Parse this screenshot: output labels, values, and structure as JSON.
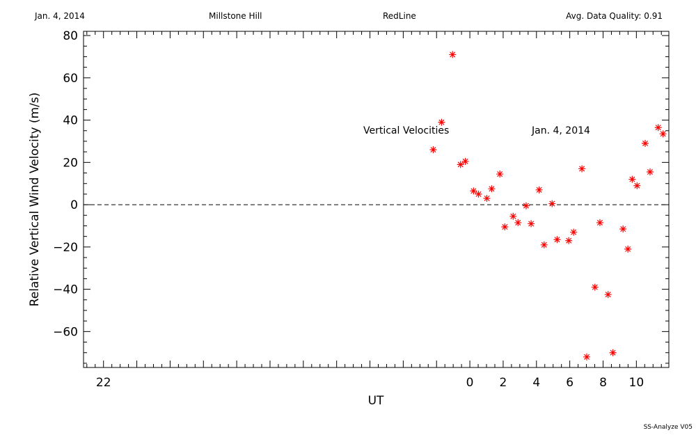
{
  "header": {
    "date": "Jan. 4, 2014",
    "site": "Millstone Hill",
    "line": "RedLine",
    "quality": "Avg. Data Quality: 0.91"
  },
  "footer": "SS-Analyze V05",
  "chart_data": {
    "type": "scatter",
    "xlabel": "UT",
    "ylabel": "Relative Vertical Wind Velocity (m/s)",
    "xlim": [
      -23.2,
      11.95
    ],
    "ylim": [
      -77,
      82
    ],
    "x_ticks": [
      -22,
      0,
      2,
      4,
      6,
      8,
      10
    ],
    "x_tick_labels": [
      "22",
      "0",
      "2",
      "4",
      "6",
      "8",
      "10"
    ],
    "y_ticks": [
      -60,
      -40,
      -20,
      0,
      20,
      40,
      60,
      80
    ],
    "y_tick_labels": [
      "−60",
      "−40",
      "−20",
      "0",
      "20",
      "40",
      "60",
      "80"
    ],
    "annotations": [
      "Vertical Velocities",
      "Jan. 4, 2014"
    ],
    "reference_line": {
      "y": 0,
      "style": "dashed"
    },
    "marker": {
      "symbol": "asterisk",
      "color": "#ff0000"
    },
    "series": [
      {
        "points": [
          {
            "x": -2.2,
            "y": 26
          },
          {
            "x": -1.7,
            "y": 39
          },
          {
            "x": -1.04,
            "y": 71
          },
          {
            "x": -0.56,
            "y": 19
          },
          {
            "x": -0.27,
            "y": 20.5
          },
          {
            "x": 0.22,
            "y": 6.5
          },
          {
            "x": 0.52,
            "y": 5
          },
          {
            "x": 1.02,
            "y": 3
          },
          {
            "x": 1.31,
            "y": 7.5
          },
          {
            "x": 1.8,
            "y": 14.5
          },
          {
            "x": 2.1,
            "y": -10.5
          },
          {
            "x": 2.6,
            "y": -5.5
          },
          {
            "x": 2.89,
            "y": -8.5
          },
          {
            "x": 3.38,
            "y": -0.5
          },
          {
            "x": 3.68,
            "y": -9
          },
          {
            "x": 4.16,
            "y": 7
          },
          {
            "x": 4.46,
            "y": -19
          },
          {
            "x": 4.94,
            "y": 0.5
          },
          {
            "x": 5.24,
            "y": -16.5
          },
          {
            "x": 5.94,
            "y": -17
          },
          {
            "x": 6.23,
            "y": -13
          },
          {
            "x": 6.73,
            "y": 17
          },
          {
            "x": 7.02,
            "y": -72
          },
          {
            "x": 7.51,
            "y": -39
          },
          {
            "x": 7.81,
            "y": -8.5
          },
          {
            "x": 8.3,
            "y": -42.5
          },
          {
            "x": 8.59,
            "y": -70
          },
          {
            "x": 9.2,
            "y": -11.5
          },
          {
            "x": 9.49,
            "y": -21
          },
          {
            "x": 9.75,
            "y": 12
          },
          {
            "x": 10.04,
            "y": 9
          },
          {
            "x": 10.53,
            "y": 29
          },
          {
            "x": 10.82,
            "y": 15.5
          },
          {
            "x": 11.31,
            "y": 36.5
          },
          {
            "x": 11.6,
            "y": 33.5
          }
        ]
      }
    ]
  }
}
